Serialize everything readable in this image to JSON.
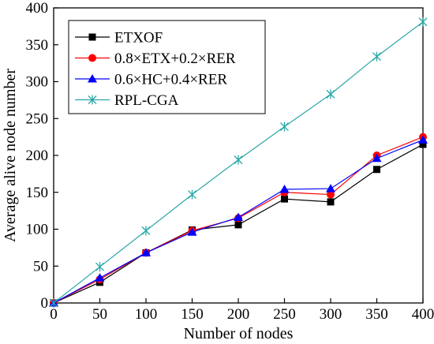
{
  "chart_data": {
    "type": "line",
    "title": "",
    "xlabel": "Number of nodes",
    "ylabel": "Average alive node number",
    "xlim": [
      0,
      400
    ],
    "ylim": [
      0,
      400
    ],
    "xticks": [
      0,
      50,
      100,
      150,
      200,
      250,
      300,
      350,
      400
    ],
    "yticks": [
      0,
      50,
      100,
      150,
      200,
      250,
      300,
      350,
      400
    ],
    "grid": false,
    "legend_position": "top-left",
    "x": [
      0,
      50,
      100,
      150,
      200,
      250,
      300,
      350,
      400
    ],
    "series": [
      {
        "name": "ETXOF",
        "color": "#000000",
        "marker": "square",
        "values": [
          0,
          28,
          68,
          99,
          106,
          141,
          137,
          181,
          215
        ]
      },
      {
        "name": "0.8×ETX+0.2×RER",
        "color": "#ff0000",
        "marker": "circle",
        "values": [
          0,
          32,
          68,
          98,
          115,
          150,
          147,
          200,
          225
        ]
      },
      {
        "name": "0.6×HC+0.4×RER",
        "color": "#0000ff",
        "marker": "triangle",
        "values": [
          0,
          34,
          68,
          96,
          116,
          154,
          155,
          196,
          221
        ]
      },
      {
        "name": "RPL-CGA",
        "color": "#2aa7a7",
        "marker": "star",
        "values": [
          0,
          49,
          98,
          147,
          194,
          239,
          283,
          334,
          381
        ]
      }
    ]
  }
}
